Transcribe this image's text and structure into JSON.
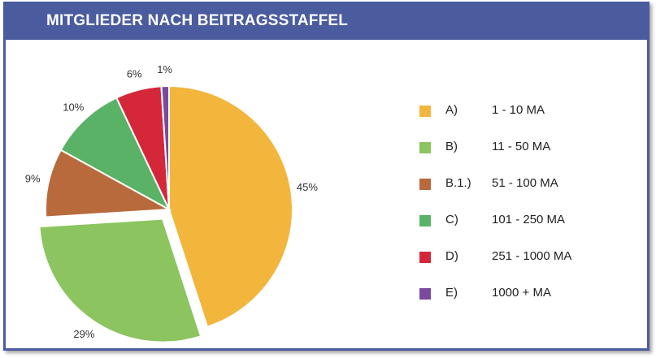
{
  "header": {
    "title": "MITGLIEDER NACH BEITRAGSSTAFFEL"
  },
  "chart_data": {
    "type": "pie",
    "title": "MITGLIEDER NACH BEITRAGSSTAFFEL",
    "legend_position": "right",
    "slices": [
      {
        "code": "A)",
        "label": "1 - 10 MA",
        "value": 45,
        "value_label": "45%",
        "color": "#f2b63c",
        "exploded": false
      },
      {
        "code": "B)",
        "label": "11 - 50 MA",
        "value": 29,
        "value_label": "29%",
        "color": "#8cc460",
        "exploded": true
      },
      {
        "code": "B.1.)",
        "label": "51 - 100 MA",
        "value": 9,
        "value_label": "9%",
        "color": "#b86a3c",
        "exploded": false
      },
      {
        "code": "C)",
        "label": "101 - 250 MA",
        "value": 10,
        "value_label": "10%",
        "color": "#5ab266",
        "exploded": false
      },
      {
        "code": "D)",
        "label": "251 - 1000 MA",
        "value": 6,
        "value_label": "6%",
        "color": "#d4283a",
        "exploded": false
      },
      {
        "code": "E)",
        "label": "1000 + MA",
        "value": 1,
        "value_label": "1%",
        "color": "#7b4a9e",
        "exploded": false
      }
    ]
  }
}
